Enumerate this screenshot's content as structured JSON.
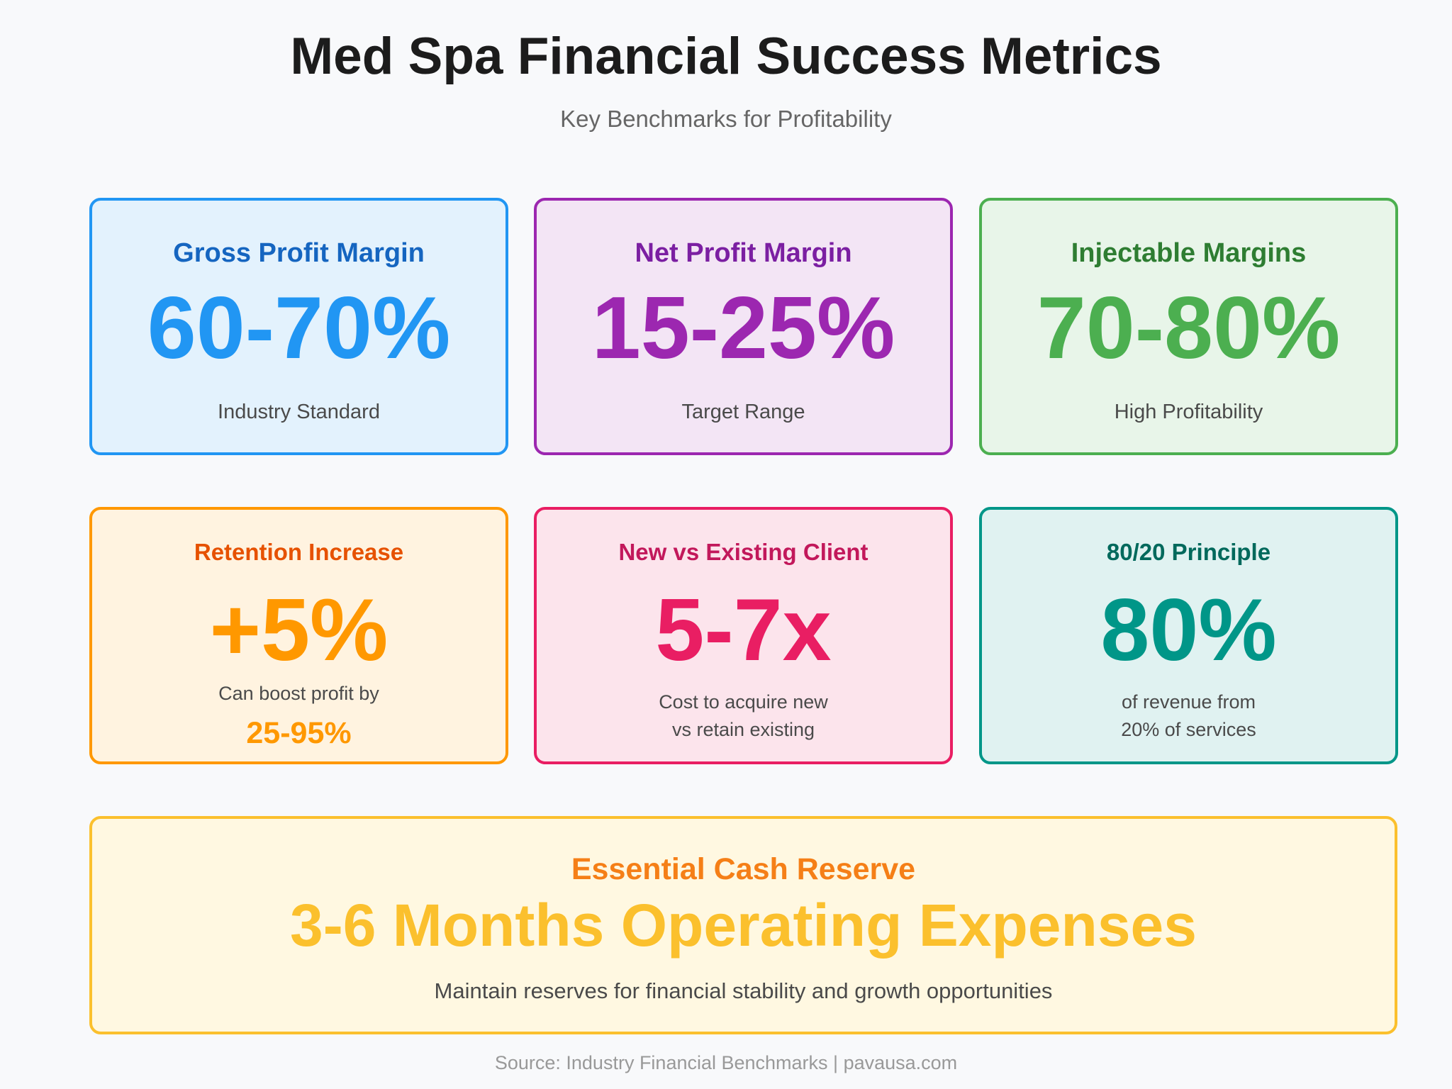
{
  "header": {
    "title": "Med Spa Financial Success Metrics",
    "subtitle": "Key Benchmarks for Profitability"
  },
  "metrics": [
    {
      "title": "Gross Profit Margin",
      "value": "60-70%",
      "desc_lines": [
        "Industry Standard"
      ],
      "color": "#2196f3"
    },
    {
      "title": "Net Profit Margin",
      "value": "15-25%",
      "desc_lines": [
        "Target Range"
      ],
      "color": "#9c27b0"
    },
    {
      "title": "Injectable Margins",
      "value": "70-80%",
      "desc_lines": [
        "High Profitability"
      ],
      "color": "#4caf50"
    },
    {
      "title": "Retention Increase",
      "value": "+5%",
      "desc_lines": [
        "Can boost profit by"
      ],
      "highlight": "25-95%",
      "color": "#ff9800"
    },
    {
      "title": "New vs Existing Client",
      "value": "5-7x",
      "desc_lines": [
        "Cost to acquire new",
        "vs retain existing"
      ],
      "color": "#e91e63"
    },
    {
      "title": "80/20 Principle",
      "value": "80%",
      "desc_lines": [
        "of revenue from",
        "20% of services"
      ],
      "color": "#009688"
    }
  ],
  "reserve": {
    "title": "Essential Cash Reserve",
    "value": "3-6 Months Operating Expenses",
    "desc": "Maintain reserves for financial stability and growth opportunities",
    "color": "#fbc02d"
  },
  "footer": {
    "source": "Source: Industry Financial Benchmarks | pavausa.com"
  }
}
